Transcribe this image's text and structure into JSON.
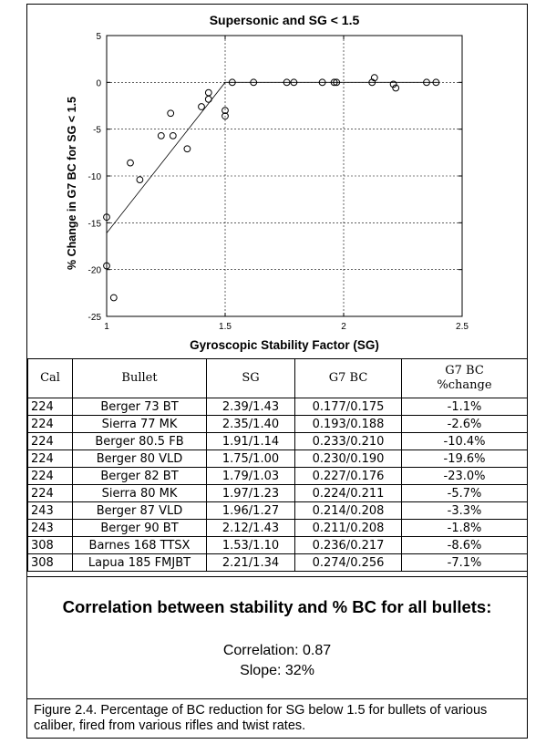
{
  "chart_data": {
    "type": "scatter",
    "title": "Supersonic and SG < 1.5",
    "xlabel": "Gyroscopic Stability Factor (SG)",
    "ylabel": "% Change in G7 BC for SG < 1.5",
    "xlim": [
      1,
      2.5
    ],
    "ylim": [
      -25,
      5
    ],
    "x_ticks": [
      "1",
      "1.5",
      "2",
      "2.5"
    ],
    "y_ticks": [
      "5",
      "0",
      "-5",
      "-10",
      "-15",
      "-20",
      "-25"
    ],
    "grid": true,
    "points": [
      {
        "x": 1.0,
        "y": -14.4
      },
      {
        "x": 1.0,
        "y": -19.6
      },
      {
        "x": 1.03,
        "y": -23.0
      },
      {
        "x": 1.1,
        "y": -8.6
      },
      {
        "x": 1.14,
        "y": -10.4
      },
      {
        "x": 1.23,
        "y": -5.7
      },
      {
        "x": 1.27,
        "y": -3.3
      },
      {
        "x": 1.28,
        "y": -5.7
      },
      {
        "x": 1.34,
        "y": -7.1
      },
      {
        "x": 1.4,
        "y": -2.6
      },
      {
        "x": 1.43,
        "y": -1.1
      },
      {
        "x": 1.43,
        "y": -1.8
      },
      {
        "x": 1.5,
        "y": -3.0
      },
      {
        "x": 1.5,
        "y": -3.6
      },
      {
        "x": 1.53,
        "y": 0
      },
      {
        "x": 1.62,
        "y": 0
      },
      {
        "x": 1.76,
        "y": 0
      },
      {
        "x": 1.79,
        "y": 0
      },
      {
        "x": 1.91,
        "y": 0
      },
      {
        "x": 1.96,
        "y": 0
      },
      {
        "x": 1.97,
        "y": 0
      },
      {
        "x": 2.12,
        "y": 0
      },
      {
        "x": 2.13,
        "y": 0.5
      },
      {
        "x": 2.21,
        "y": -0.2
      },
      {
        "x": 2.22,
        "y": -0.6
      },
      {
        "x": 2.35,
        "y": 0
      },
      {
        "x": 2.39,
        "y": 0
      }
    ],
    "fit_line": [
      {
        "x": 1.0,
        "y": -16.1
      },
      {
        "x": 1.5,
        "y": 0
      },
      {
        "x": 2.4,
        "y": 0
      }
    ]
  },
  "table": {
    "headers": [
      "Cal",
      "Bullet",
      "SG",
      "G7 BC",
      "G7 BC\n%change"
    ],
    "rows": [
      [
        "224",
        "Berger 73 BT",
        "2.39/1.43",
        "0.177/0.175",
        "-1.1%"
      ],
      [
        "224",
        "Sierra 77 MK",
        "2.35/1.40",
        "0.193/0.188",
        "-2.6%"
      ],
      [
        "224",
        "Berger 80.5 FB",
        "1.91/1.14",
        "0.233/0.210",
        "-10.4%"
      ],
      [
        "224",
        "Berger 80 VLD",
        "1.75/1.00",
        "0.230/0.190",
        "-19.6%"
      ],
      [
        "224",
        "Berger 82 BT",
        "1.79/1.03",
        "0.227/0.176",
        "-23.0%"
      ],
      [
        "224",
        "Sierra 80 MK",
        "1.97/1.23",
        "0.224/0.211",
        "-5.7%"
      ],
      [
        "243",
        "Berger 87 VLD",
        "1.96/1.27",
        "0.214/0.208",
        "-3.3%"
      ],
      [
        "243",
        "Berger 90 BT",
        "2.12/1.43",
        "0.211/0.208",
        "-1.8%"
      ],
      [
        "308",
        "Barnes 168 TTSX",
        "1.53/1.10",
        "0.236/0.217",
        "-8.6%"
      ],
      [
        "308",
        "Lapua 185 FMJBT",
        "2.21/1.34",
        "0.274/0.256",
        "-7.1%"
      ]
    ]
  },
  "summary": {
    "title": "Correlation between stability and % BC for all bullets:",
    "correlation": "Correlation: 0.87",
    "slope": "Slope: 32%"
  },
  "caption": "Figure 2.4.  Percentage of BC reduction for SG below 1.5 for bullets of various caliber, fired from various rifles and twist rates."
}
